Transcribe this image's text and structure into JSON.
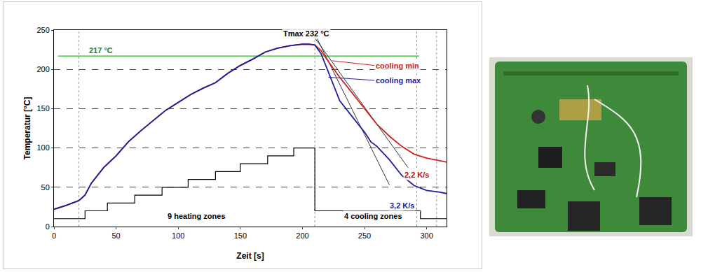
{
  "chart_data": {
    "type": "line",
    "xlabel": "Zeit [s]",
    "ylabel": "Temperatur [°C]",
    "xlim": [
      0,
      316
    ],
    "ylim": [
      0,
      250
    ],
    "xticks": [
      0,
      50,
      100,
      150,
      200,
      250,
      300
    ],
    "yticks": [
      0,
      50,
      100,
      150,
      200,
      250
    ],
    "grid": true,
    "series": [
      {
        "name": "cooling min",
        "color": "#cc2222",
        "x": [
          0,
          10,
          20,
          25,
          30,
          40,
          50,
          60,
          70,
          80,
          90,
          100,
          110,
          120,
          130,
          140,
          150,
          160,
          170,
          180,
          190,
          200,
          205,
          210,
          215,
          220,
          230,
          240,
          250,
          260,
          270,
          280,
          290,
          300,
          310,
          316
        ],
        "values": [
          22,
          27,
          33,
          40,
          55,
          75,
          90,
          108,
          122,
          135,
          148,
          158,
          168,
          176,
          183,
          195,
          205,
          213,
          222,
          227,
          230,
          232,
          232,
          231,
          224,
          212,
          190,
          170,
          150,
          130,
          115,
          102,
          92,
          87,
          84,
          82
        ]
      },
      {
        "name": "cooling max",
        "color": "#1f1f9f",
        "x": [
          0,
          10,
          20,
          25,
          30,
          40,
          50,
          60,
          70,
          80,
          90,
          100,
          110,
          120,
          130,
          140,
          150,
          160,
          170,
          180,
          190,
          200,
          205,
          210,
          215,
          220,
          225,
          230,
          240,
          250,
          255,
          260,
          270,
          280,
          290,
          300,
          310,
          316
        ],
        "values": [
          22,
          27,
          33,
          40,
          55,
          75,
          90,
          108,
          122,
          135,
          148,
          158,
          168,
          176,
          183,
          195,
          205,
          213,
          222,
          227,
          230,
          232,
          232,
          231,
          220,
          200,
          180,
          160,
          140,
          120,
          108,
          102,
          85,
          65,
          52,
          46,
          44,
          42
        ]
      }
    ],
    "zones": {
      "color": "#000000",
      "line_style": "step",
      "x": [
        0,
        25,
        43,
        65,
        87,
        108,
        130,
        150,
        172,
        193,
        210,
        295,
        316
      ],
      "values": [
        10,
        20,
        30,
        40,
        50,
        60,
        70,
        80,
        90,
        100,
        20,
        10,
        10
      ]
    },
    "reference_lines": [
      {
        "y": 217,
        "label": "217 °C",
        "color": "#22bb22"
      }
    ],
    "vlines": [
      20,
      210,
      292,
      308
    ],
    "tangents": [
      {
        "x": [
          210,
          285
        ],
        "y": [
          240,
          75
        ],
        "color": "#000000"
      },
      {
        "x": [
          210,
          270
        ],
        "y": [
          245,
          53
        ],
        "color": "#000000"
      }
    ],
    "annotations": [
      {
        "text": "Tmax 232 °C",
        "x": 203,
        "y": 246,
        "color": "#000000"
      },
      {
        "text": "2,2 K/s",
        "x": 292,
        "y": 66,
        "color": "#b01010"
      },
      {
        "text": "3,2 K/s",
        "x": 280,
        "y": 27,
        "color": "#1a1a9a"
      },
      {
        "text": "9 heating zones",
        "x": 115,
        "y": 13,
        "color": "#000000"
      },
      {
        "text": "4 cooling zones",
        "x": 257,
        "y": 13,
        "color": "#000000"
      }
    ]
  }
}
